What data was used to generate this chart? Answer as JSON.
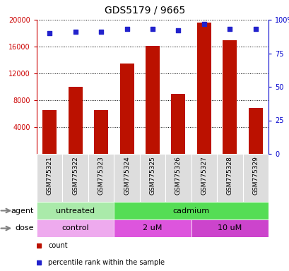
{
  "title": "GDS5179 / 9665",
  "samples": [
    "GSM775321",
    "GSM775322",
    "GSM775323",
    "GSM775324",
    "GSM775325",
    "GSM775326",
    "GSM775327",
    "GSM775328",
    "GSM775329"
  ],
  "counts": [
    6500,
    10000,
    6500,
    13500,
    16100,
    9000,
    19600,
    17000,
    6800
  ],
  "percentiles": [
    90,
    91,
    91,
    93,
    93,
    92,
    97,
    93,
    93
  ],
  "bar_color": "#bb1100",
  "dot_color": "#2222cc",
  "ylim_left": [
    0,
    20000
  ],
  "ylim_right": [
    0,
    100
  ],
  "yticks_left": [
    4000,
    8000,
    12000,
    16000,
    20000
  ],
  "yticks_right": [
    0,
    25,
    50,
    75,
    100
  ],
  "ytick_labels_right": [
    "0",
    "25",
    "50",
    "75",
    "100%"
  ],
  "agent_groups": [
    {
      "label": "untreated",
      "start": 0,
      "end": 3,
      "color": "#aaeaaa"
    },
    {
      "label": "cadmium",
      "start": 3,
      "end": 9,
      "color": "#55dd55"
    }
  ],
  "dose_groups": [
    {
      "label": "control",
      "start": 0,
      "end": 3,
      "color": "#eeaaee"
    },
    {
      "label": "2 uM",
      "start": 3,
      "end": 6,
      "color": "#dd55dd"
    },
    {
      "label": "10 uM",
      "start": 6,
      "end": 9,
      "color": "#cc44cc"
    }
  ],
  "legend_items": [
    {
      "label": "count",
      "color": "#bb1100"
    },
    {
      "label": "percentile rank within the sample",
      "color": "#2222cc"
    }
  ],
  "bar_width": 0.55,
  "tick_label_color_left": "#cc0000",
  "tick_label_color_right": "#0000cc",
  "sample_box_color": "#dddddd",
  "background_color": "#ffffff"
}
